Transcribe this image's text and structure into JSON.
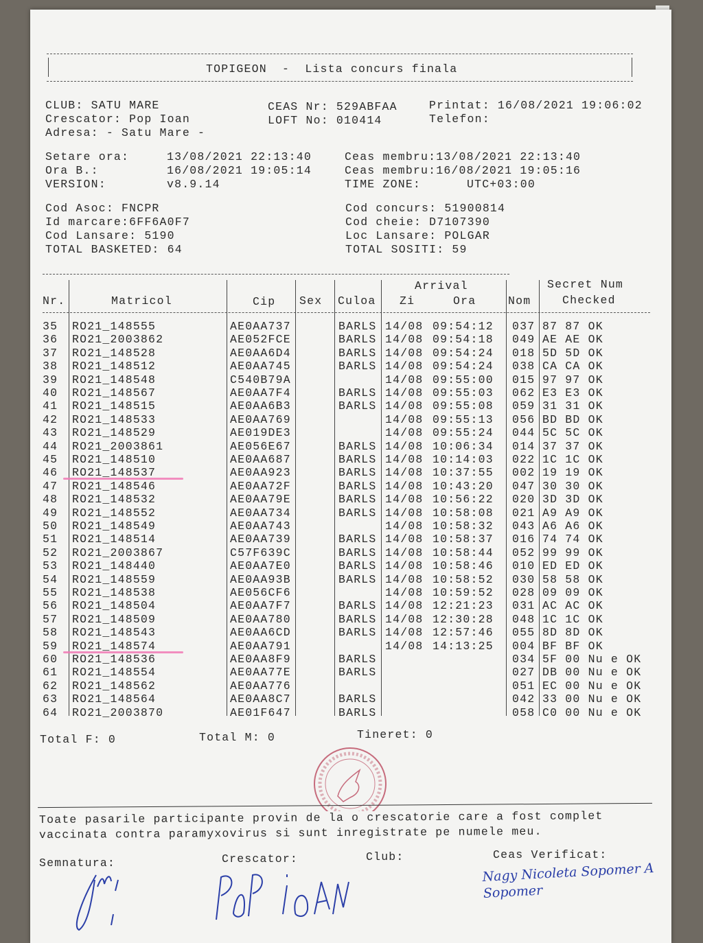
{
  "title_box": {
    "title": "TOPIGEON  -  Lista concurs finala"
  },
  "info": {
    "club": "CLUB: SATU MARE",
    "crescator": "Crescator: Pop Ioan",
    "adresa": "Adresa: - Satu Mare -",
    "ceas_nr": "CEAS Nr: 529ABFAA",
    "loft_no": "LOFT No: 010414",
    "printat": "Printat: 16/08/2021 19:06:02",
    "telefon": "Telefon:"
  },
  "times": {
    "setare_label": "Setare ora:",
    "setare_value": "13/08/2021 22:13:40",
    "ora_b_label": "Ora B.:",
    "ora_b_value": "16/08/2021 19:05:14",
    "version_label": "VERSION:",
    "version_value": "v8.9.14",
    "ceas_membru_1": "Ceas membru:13/08/2021 22:13:40",
    "ceas_membru_2": "Ceas membru:16/08/2021 19:05:16",
    "time_zone_label": "TIME ZONE:",
    "time_zone_value": "UTC+03:00"
  },
  "codes": {
    "cod_asoc": "Cod Asoc: FNCPR",
    "id_marcare": "Id marcare:6FF6A0F7",
    "cod_lansare": "Cod Lansare: 5190",
    "total_basketed": "TOTAL BASKETED: 64",
    "cod_concurs": "Cod concurs: 51900814",
    "cod_cheie": "Cod cheie: D7107390",
    "loc_lansare": "Loc Lansare: POLGAR",
    "total_sositi": "TOTAL SOSITI: 59"
  },
  "table": {
    "headers": {
      "nr": "Nr.",
      "matricol": "Matricol",
      "cip": "Cip",
      "sex": "Sex",
      "culoa": "Culoa",
      "arrival": "Arrival",
      "zi": "Zi",
      "ora": "Ora",
      "nom": "Nom",
      "secret": "Secret Num",
      "checked": "Checked"
    },
    "marked_rows": [
      "46",
      "59"
    ],
    "marker_color": "#f07ab6",
    "rows": [
      [
        "35",
        "RO21_148555",
        "AE0AA737",
        "",
        "BARLS",
        "14/08",
        "09:54:12",
        "037",
        "87 87 OK"
      ],
      [
        "36",
        "RO21_2003862",
        "AE052FCE",
        "",
        "BARLS",
        "14/08",
        "09:54:18",
        "049",
        "AE AE OK"
      ],
      [
        "37",
        "RO21_148528",
        "AE0AA6D4",
        "",
        "BARLS",
        "14/08",
        "09:54:24",
        "018",
        "5D 5D OK"
      ],
      [
        "38",
        "RO21_148512",
        "AE0AA745",
        "",
        "BARLS",
        "14/08",
        "09:54:24",
        "038",
        "CA CA OK"
      ],
      [
        "39",
        "RO21_148548",
        "C540B79A",
        "",
        "",
        "14/08",
        "09:55:00",
        "015",
        "97 97 OK"
      ],
      [
        "40",
        "RO21_148567",
        "AE0AA7F4",
        "",
        "BARLS",
        "14/08",
        "09:55:03",
        "062",
        "E3 E3 OK"
      ],
      [
        "41",
        "RO21_148515",
        "AE0AA6B3",
        "",
        "BARLS",
        "14/08",
        "09:55:08",
        "059",
        "31 31 OK"
      ],
      [
        "42",
        "RO21_148533",
        "AE0AA769",
        "",
        "",
        "14/08",
        "09:55:13",
        "056",
        "BD BD OK"
      ],
      [
        "43",
        "RO21_148529",
        "AE019DE3",
        "",
        "",
        "14/08",
        "09:55:24",
        "044",
        "5C 5C OK"
      ],
      [
        "44",
        "RO21_2003861",
        "AE056E67",
        "",
        "BARLS",
        "14/08",
        "10:06:34",
        "014",
        "37 37 OK"
      ],
      [
        "45",
        "RO21_148510",
        "AE0AA687",
        "",
        "BARLS",
        "14/08",
        "10:14:03",
        "022",
        "1C 1C OK"
      ],
      [
        "46",
        "RO21_148537",
        "AE0AA923",
        "",
        "BARLS",
        "14/08",
        "10:37:55",
        "002",
        "19 19 OK"
      ],
      [
        "47",
        "RO21_148546",
        "AE0AA72F",
        "",
        "BARLS",
        "14/08",
        "10:43:20",
        "047",
        "30 30 OK"
      ],
      [
        "48",
        "RO21_148532",
        "AE0AA79E",
        "",
        "BARLS",
        "14/08",
        "10:56:22",
        "020",
        "3D 3D OK"
      ],
      [
        "49",
        "RO21_148552",
        "AE0AA734",
        "",
        "BARLS",
        "14/08",
        "10:58:08",
        "021",
        "A9 A9 OK"
      ],
      [
        "50",
        "RO21_148549",
        "AE0AA743",
        "",
        "",
        "14/08",
        "10:58:32",
        "043",
        "A6 A6 OK"
      ],
      [
        "51",
        "RO21_148514",
        "AE0AA739",
        "",
        "BARLS",
        "14/08",
        "10:58:37",
        "016",
        "74 74 OK"
      ],
      [
        "52",
        "RO21_2003867",
        "C57F639C",
        "",
        "BARLS",
        "14/08",
        "10:58:44",
        "052",
        "99 99 OK"
      ],
      [
        "53",
        "RO21_148440",
        "AE0AA7E0",
        "",
        "BARLS",
        "14/08",
        "10:58:46",
        "010",
        "ED ED OK"
      ],
      [
        "54",
        "RO21_148559",
        "AE0AA93B",
        "",
        "BARLS",
        "14/08",
        "10:58:52",
        "030",
        "58 58 OK"
      ],
      [
        "55",
        "RO21_148538",
        "AE056CF6",
        "",
        "",
        "14/08",
        "10:59:52",
        "028",
        "09 09 OK"
      ],
      [
        "56",
        "RO21_148504",
        "AE0AA7F7",
        "",
        "BARLS",
        "14/08",
        "12:21:23",
        "031",
        "AC AC OK"
      ],
      [
        "57",
        "RO21_148509",
        "AE0AA780",
        "",
        "BARLS",
        "14/08",
        "12:30:28",
        "048",
        "1C 1C OK"
      ],
      [
        "58",
        "RO21_148543",
        "AE0AA6CD",
        "",
        "BARLS",
        "14/08",
        "12:57:46",
        "055",
        "8D 8D OK"
      ],
      [
        "59",
        "RO21_148574",
        "AE0AA791",
        "",
        "",
        "14/08",
        "14:13:25",
        "004",
        "BF BF OK"
      ],
      [
        "60",
        "RO21_148536",
        "AE0AA8F9",
        "",
        "BARLS",
        "",
        "",
        "034",
        "5F 00 Nu e OK"
      ],
      [
        "61",
        "RO21_148554",
        "AE0AA77E",
        "",
        "BARLS",
        "",
        "",
        "027",
        "DB 00 Nu e OK"
      ],
      [
        "62",
        "RO21_148562",
        "AE0AA776",
        "",
        "",
        "",
        "",
        "051",
        "EC 00 Nu e OK"
      ],
      [
        "63",
        "RO21_148564",
        "AE0AA8C7",
        "",
        "BARLS",
        "",
        "",
        "042",
        "33 00 Nu e OK"
      ],
      [
        "64",
        "RO21_2003870",
        "AE01F647",
        "",
        "BARLS",
        "",
        "",
        "058",
        "C0 00 Nu e OK"
      ]
    ]
  },
  "totals": {
    "total_f": "Total F: 0",
    "total_m": "Total M: 0",
    "tineret": "Tineret: 0"
  },
  "declaration": {
    "line1": "Toate pasarile participante provin de la o crescatorie care a fost complet",
    "line2": "vaccinata contra paramyxovirus si sunt inregistrate pe numele meu."
  },
  "signatures": {
    "semnatura_label": "Semnatura:",
    "crescator_label": "Crescator:",
    "club_label": "Club:",
    "ceas_verificat_label": "Ceas Verificat:",
    "crescator_handwriting": "POP IOAN",
    "ceas_handwriting": "Nagy Nicoleta Sopomer A Sopomer",
    "ink_color": "#2b3fa8"
  },
  "stamp": {
    "text": "Asociatia Crescatorilor de Porumbei din Romania Columbofila Judeteana Voiajori Satu Mare CIF 25096745",
    "color": "#b2304a"
  }
}
